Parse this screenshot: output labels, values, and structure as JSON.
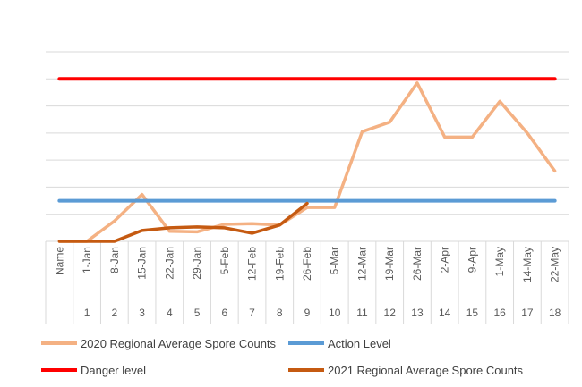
{
  "chart_data": {
    "type": "line",
    "title": "",
    "xlabel": "",
    "ylabel": "",
    "ylim": [
      0,
      7
    ],
    "categories": [
      "Name",
      "1-Jan",
      "8-Jan",
      "15-Jan",
      "22-Jan",
      "29-Jan",
      "5-Feb",
      "12-Feb",
      "19-Feb",
      "26-Feb",
      "5-Mar",
      "12-Mar",
      "19-Mar",
      "26-Mar",
      "2-Apr",
      "9-Apr",
      "1-May",
      "14-May",
      "22-May"
    ],
    "category_numbers": [
      "",
      "1",
      "2",
      "3",
      "4",
      "5",
      "6",
      "7",
      "8",
      "9",
      "10",
      "11",
      "12",
      "13",
      "14",
      "15",
      "16",
      "17",
      "18"
    ],
    "grid": true,
    "legend_position": "bottom",
    "series": [
      {
        "name": "2020 Regional Average Spore Counts",
        "color": "#F4B183",
        "values": [
          0,
          0,
          0.75,
          1.73,
          0.37,
          0.35,
          0.63,
          0.65,
          0.6,
          1.25,
          1.25,
          4.05,
          4.4,
          5.85,
          3.85,
          3.85,
          5.17,
          4.0,
          2.6
        ]
      },
      {
        "name": "Action Level",
        "color": "#5B9BD5",
        "values": [
          1.5,
          1.5,
          1.5,
          1.5,
          1.5,
          1.5,
          1.5,
          1.5,
          1.5,
          1.5,
          1.5,
          1.5,
          1.5,
          1.5,
          1.5,
          1.5,
          1.5,
          1.5,
          1.5
        ]
      },
      {
        "name": "Danger level",
        "color": "#FF0000",
        "values": [
          6,
          6,
          6,
          6,
          6,
          6,
          6,
          6,
          6,
          6,
          6,
          6,
          6,
          6,
          6,
          6,
          6,
          6,
          6
        ]
      },
      {
        "name": "2021 Regional Average Spore Counts",
        "color": "#C55A11",
        "values": [
          0,
          0,
          0,
          0.4,
          0.5,
          0.53,
          0.5,
          0.3,
          0.6,
          1.4,
          null,
          null,
          null,
          null,
          null,
          null,
          null,
          null,
          null
        ]
      }
    ],
    "legend_order": [
      0,
      1,
      2,
      3
    ]
  }
}
